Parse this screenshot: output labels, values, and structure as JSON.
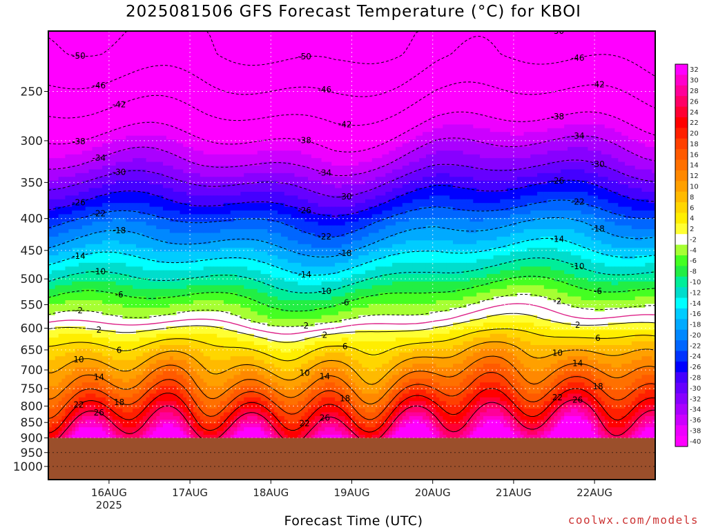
{
  "title": "2025081506 GFS Forecast Temperature (°C) for KBOI",
  "xlabel": "Forecast Time (UTC)",
  "credit": "coolwx.com/models",
  "chart_data": {
    "type": "heatmap",
    "title": "2025081506 GFS Forecast Temperature (°C) for KBOI",
    "xlabel": "Forecast Time (UTC)",
    "ylabel": "",
    "y_axis": "pressure (hPa), inverted, log scale",
    "y_ticks": [
      250,
      300,
      350,
      400,
      450,
      500,
      550,
      600,
      650,
      700,
      750,
      800,
      850,
      900,
      950,
      1000
    ],
    "x_ticks": [
      {
        "label": "16AUG",
        "sub": "2025",
        "hour": 18
      },
      {
        "label": "17AUG",
        "sub": "",
        "hour": 42
      },
      {
        "label": "18AUG",
        "sub": "",
        "hour": 66
      },
      {
        "label": "19AUG",
        "sub": "",
        "hour": 90
      },
      {
        "label": "20AUG",
        "sub": "",
        "hour": 114
      },
      {
        "label": "21AUG",
        "sub": "",
        "hour": 138
      },
      {
        "label": "22AUG",
        "sub": "",
        "hour": 162
      }
    ],
    "x_range_hours": [
      0,
      180
    ],
    "y_range_hpa": [
      200,
      1050
    ],
    "grid": true,
    "terrain_below_hpa": 900,
    "terrain_color": "#9b4f2b",
    "colorbar": {
      "levels": [
        32,
        30,
        28,
        26,
        24,
        22,
        20,
        18,
        16,
        14,
        12,
        10,
        8,
        6,
        4,
        2,
        -2,
        -4,
        -6,
        -8,
        -10,
        -12,
        -14,
        -16,
        -18,
        -20,
        -22,
        -24,
        -26,
        -28,
        -30,
        -32,
        -34,
        -36,
        -38,
        -40
      ],
      "colors": [
        "#ff00ff",
        "#ff00cc",
        "#ff0099",
        "#ff0066",
        "#ff0033",
        "#ff0000",
        "#ff2000",
        "#ff4000",
        "#ff5a00",
        "#ff7000",
        "#ff8800",
        "#ffa000",
        "#ffba00",
        "#ffd600",
        "#ffee00",
        "#ffff33",
        "#ffffff",
        "#a6ff33",
        "#44ff22",
        "#22ee44",
        "#00ee99",
        "#00ddcc",
        "#00ffff",
        "#00ccff",
        "#00aaff",
        "#0088ff",
        "#0066ff",
        "#0033ff",
        "#0000ff",
        "#4400ff",
        "#6600ff",
        "#8800ff",
        "#aa00ff",
        "#cc00ff",
        "#ee00ff",
        "#ff00ff"
      ]
    },
    "isotherms": [
      {
        "t": -50,
        "p": 218
      },
      {
        "t": -46,
        "p": 245
      },
      {
        "t": -42,
        "p": 272
      },
      {
        "t": -38,
        "p": 298
      },
      {
        "t": -34,
        "p": 327
      },
      {
        "t": -30,
        "p": 352
      },
      {
        "t": -26,
        "p": 380
      },
      {
        "t": -22,
        "p": 405
      },
      {
        "t": -18,
        "p": 440
      },
      {
        "t": -14,
        "p": 472
      },
      {
        "t": -10,
        "p": 505
      },
      {
        "t": -6,
        "p": 540
      },
      {
        "t": -2,
        "p": 580
      },
      {
        "t": 2,
        "p": 610
      },
      {
        "t": 6,
        "p": 645
      },
      {
        "t": 10,
        "p": 690
      },
      {
        "t": 14,
        "p": 738
      },
      {
        "t": 18,
        "p": 780
      },
      {
        "t": 22,
        "p": 820
      },
      {
        "t": 26,
        "p": 860
      }
    ],
    "freezing_level_hpa": 595
  }
}
